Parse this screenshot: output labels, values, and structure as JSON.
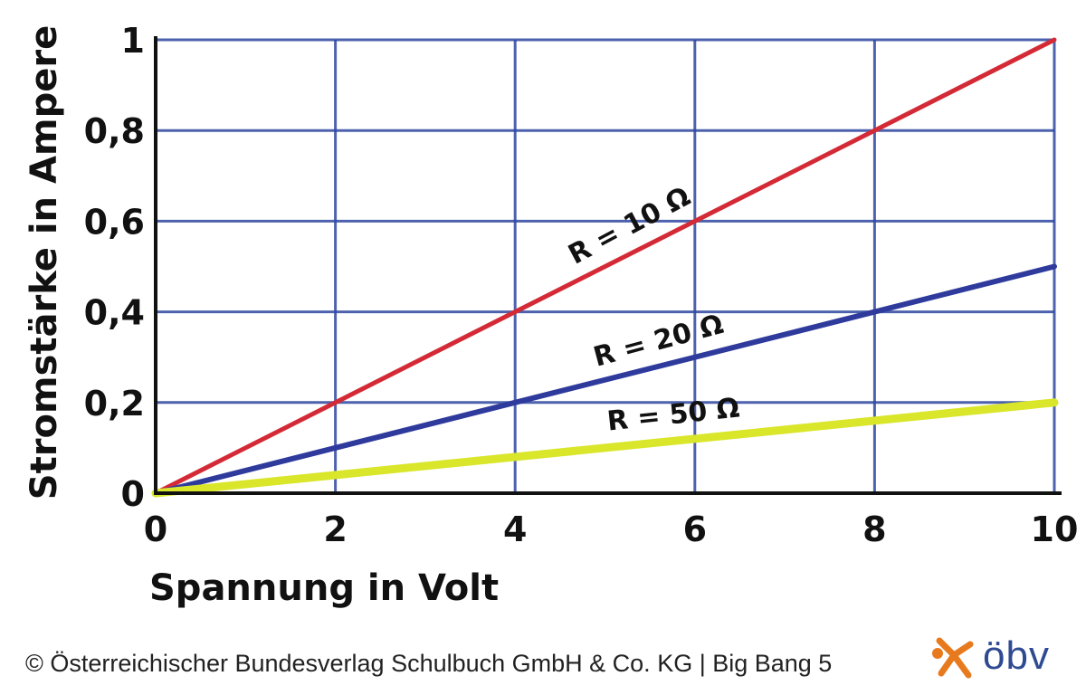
{
  "chart_data": {
    "type": "line",
    "xlabel": "Spannung in Volt",
    "ylabel": "Stromstärke in Ampere",
    "xlim": [
      0,
      10
    ],
    "ylim": [
      0,
      1
    ],
    "x_ticks": [
      "0",
      "2",
      "4",
      "6",
      "8",
      "10"
    ],
    "y_ticks": [
      "0",
      "0,2",
      "0,4",
      "0,6",
      "0,8",
      "1"
    ],
    "grid": true,
    "legend": "labels on lines",
    "series": [
      {
        "name": "R = 10 Ω",
        "color": "#d42a36",
        "x": [
          0,
          10
        ],
        "y": [
          0,
          1.0
        ]
      },
      {
        "name": "R = 20 Ω",
        "color": "#2e3a9c",
        "x": [
          0,
          10
        ],
        "y": [
          0,
          0.5
        ]
      },
      {
        "name": "R = 50 Ω",
        "color": "#d9e62a",
        "x": [
          0,
          10
        ],
        "y": [
          0,
          0.2
        ]
      }
    ]
  },
  "footer": {
    "copyright": "© Österreichischer Bundesverlag Schulbuch GmbH & Co. KG |  Big Bang 5"
  },
  "logo": {
    "text": "öbv",
    "icon": "star-person-icon",
    "accent_color": "#e87a1e",
    "brand_color": "#2e4a92"
  }
}
